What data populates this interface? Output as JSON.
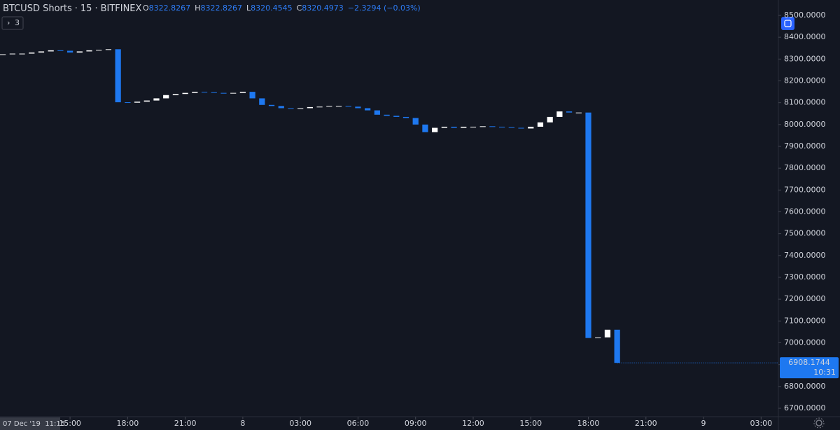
{
  "chart_data": {
    "type": "candlestick",
    "symbol": "BTCUSD Shorts",
    "interval": "15",
    "exchange": "BITFINEX",
    "separator": "·",
    "ohlc": [
      {
        "key": "O",
        "value": "8322.8267"
      },
      {
        "key": "H",
        "value": "8322.8267"
      },
      {
        "key": "L",
        "value": "8320.4545"
      },
      {
        "key": "C",
        "value": "8320.4973"
      }
    ],
    "change": "−2.3294 (−0.03%)",
    "indicators_button": "3",
    "crosshair_date": "07 Dec '19  11:15",
    "last_price": 6908.1744,
    "countdown": "10:31",
    "up_color": "#ffffff",
    "down_color": "#1e78f0",
    "x": [
      11.5,
      12,
      12.5,
      13,
      13.5,
      14,
      14.5,
      15,
      15.5,
      16,
      16.5,
      17,
      17.5,
      18,
      18.5,
      19,
      19.5,
      20,
      20.5,
      21,
      21.5,
      22,
      22.5,
      23,
      23.5,
      24,
      24.5,
      25,
      25.5,
      26,
      26.5,
      27,
      27.5,
      28,
      28.5,
      29,
      29.5,
      30,
      30.5,
      31,
      31.5,
      32,
      32.5,
      33,
      33.5,
      34,
      34.5,
      35,
      35.5,
      36,
      36.5,
      37,
      37.5,
      38,
      38.5,
      39,
      39.5,
      40,
      40.5,
      41,
      41.5,
      42,
      42.5,
      43,
      43.5
    ],
    "open": [
      8320,
      8322,
      8325,
      8325,
      8330,
      8335,
      8340,
      8338,
      8330,
      8335,
      8340,
      8342,
      8345,
      8102,
      8100,
      8105,
      8110,
      8120,
      8135,
      8140,
      8145,
      8150,
      8148,
      8145,
      8142,
      8145,
      8150,
      8120,
      8090,
      8085,
      8075,
      8072,
      8075,
      8080,
      8082,
      8085,
      8085,
      8082,
      8075,
      8065,
      8045,
      8040,
      8035,
      8030,
      8000,
      7965,
      7985,
      7990,
      7985,
      7990,
      7990,
      7992,
      7990,
      7988,
      7985,
      7982,
      7990,
      8010,
      8035,
      8060,
      8055,
      8055,
      7022,
      7025,
      7060
    ],
    "close": [
      8322,
      8325,
      8325,
      8330,
      8335,
      8340,
      8338,
      8330,
      8335,
      8340,
      8342,
      8345,
      8102,
      8100,
      8105,
      8110,
      8120,
      8135,
      8140,
      8145,
      8150,
      8148,
      8145,
      8142,
      8145,
      8150,
      8120,
      8090,
      8085,
      8075,
      8072,
      8075,
      8080,
      8082,
      8085,
      8085,
      8082,
      8075,
      8065,
      8045,
      8040,
      8035,
      8030,
      8000,
      7965,
      7985,
      7990,
      7985,
      7990,
      7990,
      7992,
      7990,
      7988,
      7985,
      7982,
      7990,
      8010,
      8035,
      8060,
      8055,
      8055,
      7022,
      7025,
      7060,
      6908
    ],
    "xlim": [
      11.35,
      51.9
    ],
    "xticks": [
      {
        "value": 15,
        "label": "15:00"
      },
      {
        "value": 18,
        "label": "18:00"
      },
      {
        "value": 21,
        "label": "21:00"
      },
      {
        "value": 24,
        "label": "8"
      },
      {
        "value": 27,
        "label": "03:00"
      },
      {
        "value": 30,
        "label": "06:00"
      },
      {
        "value": 33,
        "label": "09:00"
      },
      {
        "value": 36,
        "label": "12:00"
      },
      {
        "value": 39,
        "label": "15:00"
      },
      {
        "value": 42,
        "label": "18:00"
      },
      {
        "value": 45,
        "label": "21:00"
      },
      {
        "value": 48,
        "label": "9"
      },
      {
        "value": 51,
        "label": "03:00"
      }
    ],
    "ylim": [
      6661.5,
      8570.6
    ],
    "yticks": [
      {
        "value": 6700,
        "label": "6700.0000"
      },
      {
        "value": 6800,
        "label": "6800.0000"
      },
      {
        "value": 6900,
        "label": "6900.0000"
      },
      {
        "value": 7000,
        "label": "7000.0000"
      },
      {
        "value": 7100,
        "label": "7100.0000"
      },
      {
        "value": 7200,
        "label": "7200.0000"
      },
      {
        "value": 7300,
        "label": "7300.0000"
      },
      {
        "value": 7400,
        "label": "7400.0000"
      },
      {
        "value": 7500,
        "label": "7500.0000"
      },
      {
        "value": 7600,
        "label": "7600.0000"
      },
      {
        "value": 7700,
        "label": "7700.0000"
      },
      {
        "value": 7800,
        "label": "7800.0000"
      },
      {
        "value": 7900,
        "label": "7900.0000"
      },
      {
        "value": 8000,
        "label": "8000.0000"
      },
      {
        "value": 8100,
        "label": "8100.0000"
      },
      {
        "value": 8200,
        "label": "8200.0000"
      },
      {
        "value": 8300,
        "label": "8300.0000"
      },
      {
        "value": 8400,
        "label": "8400.0000"
      },
      {
        "value": 8500,
        "label": "8500.0000"
      }
    ]
  }
}
